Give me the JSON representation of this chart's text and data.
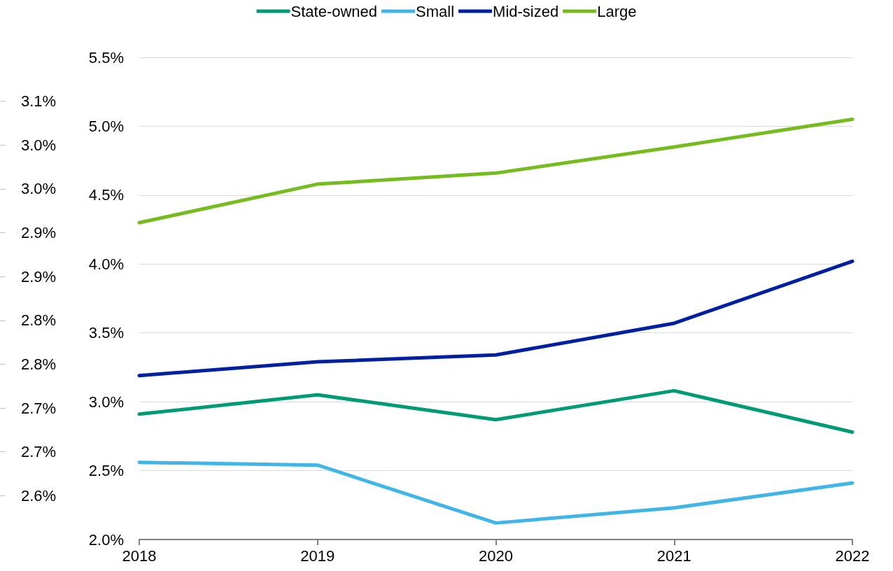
{
  "chart_data": {
    "type": "line",
    "categories": [
      "2018",
      "2019",
      "2020",
      "2021",
      "2022"
    ],
    "series": [
      {
        "name": "State-owned",
        "color": "#009a74",
        "values": [
          2.91,
          3.05,
          2.87,
          3.08,
          2.78
        ]
      },
      {
        "name": "Small",
        "color": "#41b6e6",
        "values": [
          2.56,
          2.54,
          2.12,
          2.23,
          2.41
        ]
      },
      {
        "name": "Mid-sized",
        "color": "#0020a0",
        "values": [
          3.19,
          3.29,
          3.34,
          3.57,
          4.02
        ]
      },
      {
        "name": "Large",
        "color": "#76bc21",
        "values": [
          4.3,
          4.58,
          4.66,
          4.85,
          5.05
        ]
      }
    ],
    "ylim": [
      2.0,
      5.5
    ],
    "yticks": [
      {
        "value": 2.0,
        "label": "2.0%"
      },
      {
        "value": 2.5,
        "label": "2.5%"
      },
      {
        "value": 3.0,
        "label": "3.0%"
      },
      {
        "value": 3.5,
        "label": "3.5%"
      },
      {
        "value": 4.0,
        "label": "4.0%"
      },
      {
        "value": 4.5,
        "label": "4.5%"
      },
      {
        "value": 5.0,
        "label": "5.0%"
      },
      {
        "value": 5.5,
        "label": "5.5%"
      }
    ],
    "y2lim": [
      2.6,
      3.15
    ],
    "y2ticks": [
      {
        "value": 2.65,
        "label": "2.6%"
      },
      {
        "value": 2.7,
        "label": "2.7%"
      },
      {
        "value": 2.75,
        "label": "2.7%"
      },
      {
        "value": 2.8,
        "label": "2.8%"
      },
      {
        "value": 2.85,
        "label": "2.8%"
      },
      {
        "value": 2.9,
        "label": "2.9%"
      },
      {
        "value": 2.95,
        "label": "2.9%"
      },
      {
        "value": 3.0,
        "label": "3.0%"
      },
      {
        "value": 3.05,
        "label": "3.0%"
      },
      {
        "value": 3.1,
        "label": "3.1%"
      }
    ],
    "grid": "y",
    "legend": "top",
    "marker": "none",
    "line_style": "solid"
  }
}
